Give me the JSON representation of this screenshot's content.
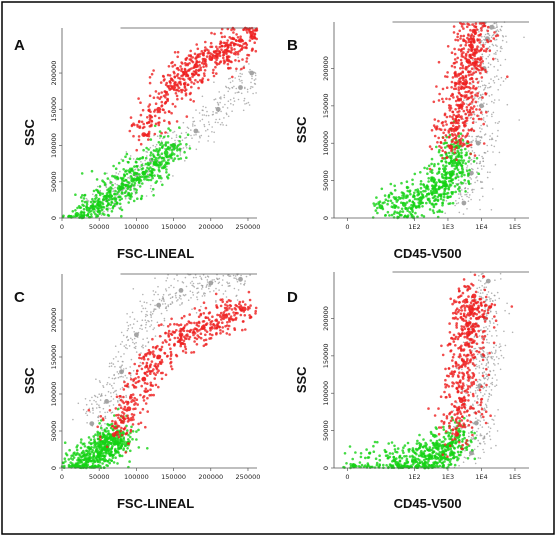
{
  "colors": {
    "population_granulocytes": "#ee1f1f",
    "population_lymph_mono": "#14d214",
    "background_events": "#9a9a9a",
    "frame": "#000000"
  },
  "chart_data": [
    {
      "panel": "A",
      "type": "scatter",
      "xlabel": "FSC-LINEAL",
      "ylabel": "SSC",
      "x_scale": "linear",
      "xlim": [
        0,
        262144
      ],
      "ylim": [
        0,
        262144
      ],
      "x_ticks": [
        0,
        50000,
        100000,
        150000,
        200000,
        250000
      ],
      "x_tick_labels": [
        "0",
        "50000",
        "100000",
        "150000",
        "200000",
        "250000"
      ],
      "y_ticks": [
        0,
        50000,
        100000,
        150000,
        200000
      ],
      "y_tick_labels": [
        "0",
        "50000",
        "100000",
        "150000",
        "200000"
      ],
      "series": [
        {
          "color": "#9a9a9a",
          "x": [
            40000,
            60000,
            80000,
            100000,
            120000,
            150000,
            180000,
            210000,
            240000,
            255000
          ],
          "y": [
            15000,
            25000,
            40000,
            60000,
            80000,
            100000,
            120000,
            150000,
            180000,
            200000
          ]
        },
        {
          "color": "#14d214",
          "x": [
            20000,
            35000,
            50000,
            65000,
            80000,
            95000,
            110000,
            125000,
            140000,
            150000
          ],
          "y": [
            5000,
            12000,
            20000,
            30000,
            42000,
            52000,
            62000,
            75000,
            90000,
            100000
          ]
        },
        {
          "color": "#ee1f1f",
          "x": [
            110000,
            130000,
            150000,
            165000,
            180000,
            200000,
            220000,
            240000,
            255000
          ],
          "y": [
            115000,
            150000,
            180000,
            200000,
            210000,
            220000,
            230000,
            245000,
            255000
          ]
        }
      ]
    },
    {
      "panel": "B",
      "type": "scatter",
      "xlabel": "CD45-V500",
      "ylabel": "SSC",
      "x_scale": "biexponential",
      "xlim": [
        -300,
        262144
      ],
      "ylim": [
        0,
        262144
      ],
      "x_ticks": [
        0,
        100,
        1000,
        10000,
        100000
      ],
      "x_tick_labels": [
        "0",
        "1E2",
        "1E3",
        "1E4",
        "1E5"
      ],
      "y_ticks": [
        0,
        50000,
        100000,
        150000,
        200000
      ],
      "y_tick_labels": [
        "0",
        "50000",
        "100000",
        "150000",
        "200000"
      ],
      "series": [
        {
          "color": "#9a9a9a",
          "x": [
            3000,
            5000,
            8000,
            10000,
            12000,
            15000,
            20000
          ],
          "y": [
            20000,
            60000,
            100000,
            150000,
            200000,
            240000,
            255000
          ]
        },
        {
          "color": "#14d214",
          "x": [
            10,
            50,
            150,
            400,
            800,
            1200,
            1500,
            2000
          ],
          "y": [
            15000,
            18000,
            25000,
            35000,
            45000,
            60000,
            75000,
            95000
          ]
        },
        {
          "color": "#ee1f1f",
          "x": [
            1200,
            1800,
            2500,
            3200,
            4000,
            5000,
            6000
          ],
          "y": [
            95000,
            120000,
            150000,
            180000,
            210000,
            230000,
            250000
          ]
        }
      ]
    },
    {
      "panel": "C",
      "type": "scatter",
      "xlabel": "FSC-LINEAL",
      "ylabel": "SSC",
      "x_scale": "linear",
      "xlim": [
        0,
        262144
      ],
      "ylim": [
        0,
        262144
      ],
      "x_ticks": [
        0,
        50000,
        100000,
        150000,
        200000,
        250000
      ],
      "x_tick_labels": [
        "0",
        "50000",
        "100000",
        "150000",
        "200000",
        "250000"
      ],
      "y_ticks": [
        0,
        50000,
        100000,
        150000,
        200000
      ],
      "y_tick_labels": [
        "0",
        "50000",
        "100000",
        "150000",
        "200000"
      ],
      "series": [
        {
          "color": "#9a9a9a",
          "x": [
            40000,
            60000,
            80000,
            100000,
            130000,
            160000,
            200000,
            240000
          ],
          "y": [
            60000,
            90000,
            130000,
            180000,
            220000,
            240000,
            250000,
            255000
          ]
        },
        {
          "color": "#14d214",
          "x": [
            20000,
            35000,
            50000,
            60000,
            70000,
            80000
          ],
          "y": [
            3000,
            10000,
            18000,
            28000,
            38000,
            45000
          ]
        },
        {
          "color": "#ee1f1f",
          "x": [
            70000,
            90000,
            110000,
            130000,
            160000,
            190000,
            220000,
            245000
          ],
          "y": [
            45000,
            80000,
            120000,
            150000,
            180000,
            190000,
            205000,
            215000
          ]
        }
      ]
    },
    {
      "panel": "D",
      "type": "scatter",
      "xlabel": "CD45-V500",
      "ylabel": "SSC",
      "x_scale": "biexponential",
      "xlim": [
        -300,
        262144
      ],
      "ylim": [
        0,
        262144
      ],
      "x_ticks": [
        0,
        100,
        1000,
        10000,
        100000
      ],
      "x_tick_labels": [
        "0",
        "1E2",
        "1E3",
        "1E4",
        "1E5"
      ],
      "y_ticks": [
        0,
        50000,
        100000,
        150000,
        200000
      ],
      "y_tick_labels": [
        "0",
        "50000",
        "100000",
        "150000",
        "200000"
      ],
      "series": [
        {
          "color": "#9a9a9a",
          "x": [
            5000,
            7000,
            9000,
            11000,
            13000,
            16000
          ],
          "y": [
            20000,
            60000,
            110000,
            150000,
            200000,
            250000
          ]
        },
        {
          "color": "#14d214",
          "x": [
            5,
            30,
            100,
            300,
            700,
            1200,
            2000
          ],
          "y": [
            3000,
            6000,
            9000,
            14000,
            20000,
            32000,
            42000
          ]
        },
        {
          "color": "#ee1f1f",
          "x": [
            1800,
            2500,
            3200,
            4000,
            5000,
            6000
          ],
          "y": [
            45000,
            90000,
            140000,
            180000,
            210000,
            230000
          ]
        }
      ]
    }
  ]
}
